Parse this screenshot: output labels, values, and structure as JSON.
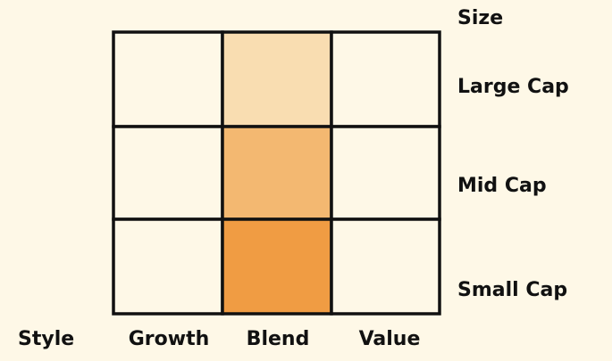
{
  "size_axis": {
    "title": "Size",
    "rows": [
      "Large Cap",
      "Mid Cap",
      "Small Cap"
    ]
  },
  "style_axis": {
    "title": "Style",
    "columns": [
      "Growth",
      "Blend",
      "Value"
    ]
  }
}
